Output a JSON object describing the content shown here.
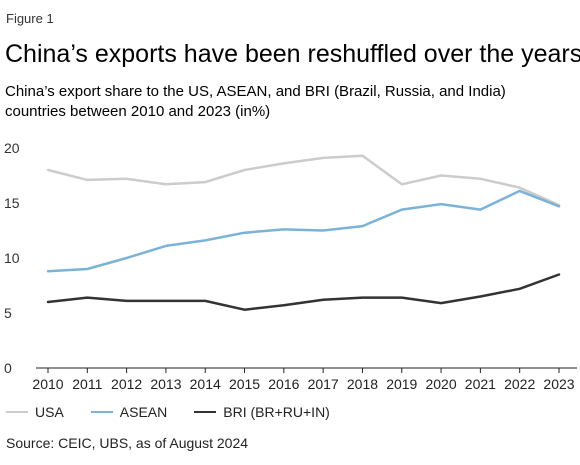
{
  "figure_label": "Figure 1",
  "title": "China’s exports have been reshuffled over the years",
  "subtitle": "China’s export share to the US, ASEAN, and BRI (Brazil, Russia, and India) countries between 2010 and 2023 (in%)",
  "source": "Source: CEIC, UBS, as of August 2024",
  "chart_data": {
    "type": "line",
    "x": [
      "2010",
      "2011",
      "2012",
      "2013",
      "2014",
      "2015",
      "2016",
      "2017",
      "2018",
      "2019",
      "2020",
      "2021",
      "2022",
      "2023"
    ],
    "ylim": [
      0,
      20
    ],
    "yticks": [
      "0",
      "5",
      "10",
      "15",
      "20"
    ],
    "grid": false,
    "legend_position": "bottom",
    "series": [
      {
        "name": "USA",
        "color": "#cccccc",
        "values": [
          18.0,
          17.1,
          17.2,
          16.7,
          16.9,
          18.0,
          18.6,
          19.1,
          19.3,
          16.7,
          17.5,
          17.2,
          16.4,
          14.8
        ]
      },
      {
        "name": "ASEAN",
        "color": "#7bb3d8",
        "values": [
          8.8,
          9.0,
          10.0,
          11.1,
          11.6,
          12.3,
          12.6,
          12.5,
          12.9,
          14.4,
          14.9,
          14.4,
          16.1,
          14.7
        ]
      },
      {
        "name": "BRI (BR+RU+IN)",
        "color": "#333333",
        "values": [
          6.0,
          6.4,
          6.1,
          6.1,
          6.1,
          5.3,
          5.7,
          6.2,
          6.4,
          6.4,
          5.9,
          6.5,
          7.2,
          8.5
        ]
      }
    ]
  }
}
